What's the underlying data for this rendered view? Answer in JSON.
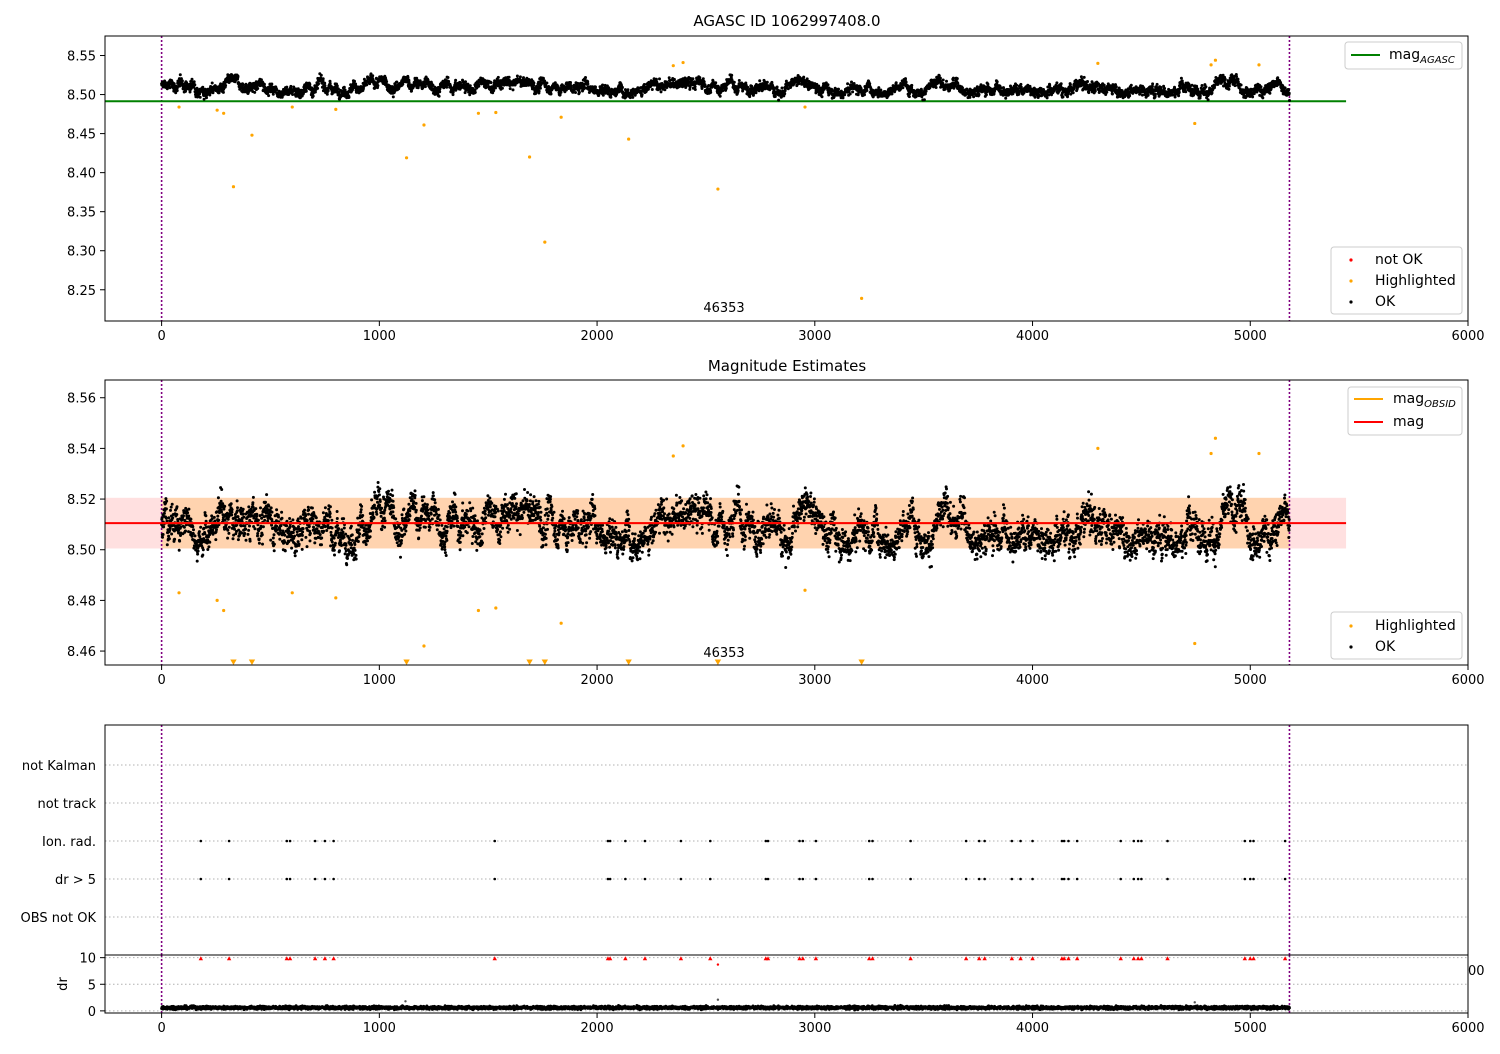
{
  "figure": {
    "panels": [
      {
        "title": "AGASC ID 1062997408.0",
        "annotation": "46353"
      },
      {
        "title": "Magnitude Estimates",
        "annotation": "46353"
      },
      {
        "title": ""
      }
    ],
    "extra_tick_fragment": "00"
  },
  "chart_data": [
    {
      "type": "scatter",
      "title": "AGASC ID 1062997408.0",
      "xlim": [
        -260,
        6000
      ],
      "ylim": [
        8.21,
        8.575
      ],
      "x_ticks": [
        0,
        1000,
        2000,
        3000,
        4000,
        5000,
        6000
      ],
      "y_ticks": [
        8.25,
        8.3,
        8.35,
        8.4,
        8.45,
        8.5,
        8.55
      ],
      "x_tick_labels": [
        "0",
        "1000",
        "2000",
        "3000",
        "4000",
        "5000",
        "6000"
      ],
      "y_tick_labels": [
        "8.25",
        "8.30",
        "8.35",
        "8.40",
        "8.45",
        "8.50",
        "8.55"
      ],
      "grid": false,
      "lines": [
        {
          "name": "mag_AGASC",
          "label_main": "mag",
          "label_sub": "AGASC",
          "y": 8.4915,
          "x_range": [
            -260,
            5440
          ],
          "color": "#008000"
        }
      ],
      "vlines": [
        0,
        5180
      ],
      "vline_color": "#800080",
      "series": [
        {
          "name": "not OK",
          "color": "#ff0000",
          "points": []
        },
        {
          "name": "Highlighted",
          "color": "#ffa500",
          "points": [
            [
              80,
              8.484
            ],
            [
              255,
              8.48
            ],
            [
              285,
              8.476
            ],
            [
              330,
              8.382
            ],
            [
              415,
              8.448
            ],
            [
              600,
              8.484
            ],
            [
              800,
              8.481
            ],
            [
              1125,
              8.419
            ],
            [
              1205,
              8.461
            ],
            [
              1455,
              8.476
            ],
            [
              1535,
              8.477
            ],
            [
              1690,
              8.42
            ],
            [
              1760,
              8.311
            ],
            [
              1835,
              8.471
            ],
            [
              2145,
              8.443
            ],
            [
              2350,
              8.537
            ],
            [
              2395,
              8.541
            ],
            [
              2555,
              8.379
            ],
            [
              2955,
              8.484
            ],
            [
              3215,
              8.239
            ],
            [
              4300,
              8.54
            ],
            [
              4745,
              8.463
            ],
            [
              4820,
              8.538
            ],
            [
              4840,
              8.544
            ],
            [
              5040,
              8.538
            ]
          ]
        },
        {
          "name": "OK",
          "color": "#000000",
          "n_points": 5200,
          "x_range": [
            0,
            5180
          ],
          "y_center": 8.5105,
          "y_spread": 0.012
        }
      ],
      "legend_upper": "upper right",
      "legend_lower": "lower right",
      "annotation": {
        "text": "46353",
        "x": 2575,
        "y": 8.22
      }
    },
    {
      "type": "scatter",
      "title": "Magnitude Estimates",
      "xlim": [
        -260,
        6000
      ],
      "ylim": [
        8.4545,
        8.567
      ],
      "x_ticks": [
        0,
        1000,
        2000,
        3000,
        4000,
        5000,
        6000
      ],
      "y_ticks": [
        8.46,
        8.48,
        8.5,
        8.52,
        8.54,
        8.56
      ],
      "x_tick_labels": [
        "0",
        "1000",
        "2000",
        "3000",
        "4000",
        "5000",
        "6000"
      ],
      "y_tick_labels": [
        "8.46",
        "8.48",
        "8.50",
        "8.52",
        "8.54",
        "8.56"
      ],
      "grid": false,
      "lines": [
        {
          "name": "mag_OBSID",
          "label_main": "mag",
          "label_sub": "OBSID",
          "y": 8.5105,
          "x_range": [
            0,
            5180
          ],
          "color": "#ffa500"
        },
        {
          "name": "mag",
          "label_main": "mag",
          "label_sub": "",
          "y": 8.5105,
          "x_range": [
            -260,
            5440
          ],
          "color": "#ff0000"
        }
      ],
      "bands": [
        {
          "y_range": [
            8.5005,
            8.5205
          ],
          "x_range": [
            -260,
            5440
          ],
          "color": "#ff0000",
          "opacity": 0.12
        },
        {
          "y_range": [
            8.5005,
            8.5205
          ],
          "x_range": [
            0,
            5180
          ],
          "color": "#ffa500",
          "opacity": 0.22
        }
      ],
      "vlines": [
        0,
        5180
      ],
      "vline_color": "#800080",
      "series": [
        {
          "name": "Highlighted",
          "color": "#ffa500",
          "points": [
            [
              80,
              8.483
            ],
            [
              255,
              8.48
            ],
            [
              285,
              8.476
            ],
            [
              600,
              8.483
            ],
            [
              800,
              8.481
            ],
            [
              1205,
              8.462
            ],
            [
              1455,
              8.476
            ],
            [
              1535,
              8.477
            ],
            [
              1835,
              8.471
            ],
            [
              2350,
              8.537
            ],
            [
              2395,
              8.541
            ],
            [
              2955,
              8.484
            ],
            [
              4300,
              8.54
            ],
            [
              4745,
              8.463
            ],
            [
              4820,
              8.538
            ],
            [
              4840,
              8.544
            ],
            [
              5040,
              8.538
            ]
          ]
        },
        {
          "name": "Highlighted (below axis)",
          "color": "#ffa500",
          "marker": "triangle-down",
          "x": [
            330,
            415,
            1125,
            1690,
            1760,
            2145,
            2555,
            3215
          ],
          "y": 8.4555
        },
        {
          "name": "OK",
          "color": "#000000",
          "n_points": 5200,
          "x_range": [
            0,
            5180
          ],
          "y_center": 8.5105,
          "y_spread": 0.012
        }
      ],
      "legend_upper": "upper right",
      "legend_lower": "lower right",
      "annotation": {
        "text": "46353",
        "x": 2575,
        "y": 8.457
      }
    },
    {
      "type": "scatter",
      "title": "",
      "xlim": [
        -260,
        6000
      ],
      "categories": [
        "OBS not OK",
        "dr > 5",
        "Ion. rad.",
        "not track",
        "not Kalman"
      ],
      "grid": true,
      "vlines": [
        0,
        5180
      ],
      "vline_color": "#800080",
      "series": [
        {
          "name": "dr > 5",
          "color": "#000000",
          "x": [
            180,
            310,
            575,
            590,
            705,
            750,
            790,
            1530,
            2050,
            2060,
            2130,
            2220,
            2385,
            2520,
            2775,
            2785,
            2930,
            2945,
            3005,
            3250,
            3265,
            3440,
            3695,
            3755,
            3780,
            3905,
            3945,
            4000,
            4135,
            4145,
            4165,
            4205,
            4405,
            4465,
            4485,
            4500,
            4620,
            4975,
            5000,
            5015,
            5160
          ]
        },
        {
          "name": "Ion. rad.",
          "color": "#000000",
          "x": [
            180,
            310,
            575,
            590,
            705,
            750,
            790,
            1530,
            2050,
            2060,
            2130,
            2220,
            2385,
            2520,
            2775,
            2785,
            2930,
            2945,
            3005,
            3250,
            3265,
            3440,
            3695,
            3755,
            3780,
            3905,
            3945,
            4000,
            4135,
            4145,
            4165,
            4205,
            4405,
            4465,
            4485,
            4500,
            4620,
            4975,
            5000,
            5015,
            5160
          ]
        }
      ]
    },
    {
      "type": "scatter",
      "ylabel": "dr",
      "xlim": [
        -260,
        6000
      ],
      "ylim": [
        -0.4,
        10.5
      ],
      "x_ticks": [
        0,
        1000,
        2000,
        3000,
        4000,
        5000,
        6000
      ],
      "y_ticks": [
        0,
        5,
        10
      ],
      "x_tick_labels": [
        "0",
        "1000",
        "2000",
        "3000",
        "4000",
        "5000",
        "6000"
      ],
      "y_tick_labels": [
        "0",
        "5",
        "10"
      ],
      "grid": true,
      "vlines": [
        0,
        5180
      ],
      "vline_color": "#800080",
      "series": [
        {
          "name": "dr",
          "color": "#000000",
          "n_points": 5200,
          "x_range": [
            0,
            5180
          ],
          "y_center": 0.6,
          "y_spread": 0.3,
          "outliers": [
            [
              1120,
              1.8
            ],
            [
              2555,
              2.1
            ],
            [
              4745,
              1.6
            ]
          ]
        },
        {
          "name": "dr clipped",
          "color": "#ff0000",
          "marker": "triangle-up",
          "y": 9.9,
          "x": [
            180,
            310,
            575,
            590,
            705,
            750,
            790,
            1530,
            2050,
            2060,
            2130,
            2220,
            2385,
            2520,
            2775,
            2785,
            2930,
            2945,
            3005,
            3250,
            3265,
            3440,
            3695,
            3755,
            3780,
            3905,
            3945,
            4000,
            4135,
            4145,
            4165,
            4205,
            4405,
            4465,
            4485,
            4500,
            4620,
            4975,
            5000,
            5015,
            5160
          ]
        },
        {
          "name": "dr clipped low",
          "color": "#ff0000",
          "points": [
            [
              2555,
              8.7
            ]
          ]
        }
      ]
    }
  ]
}
